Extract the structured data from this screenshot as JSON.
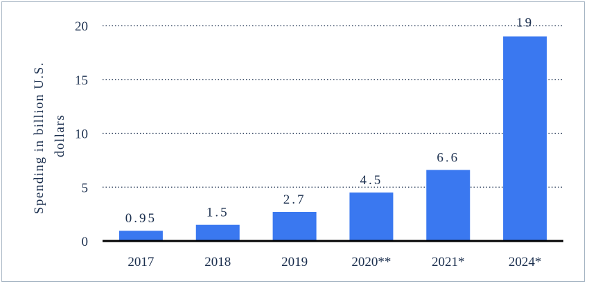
{
  "chart_data": {
    "type": "bar",
    "title": "",
    "xlabel": "",
    "ylabel_lines": [
      "Spending in billion U.S.",
      "dollars"
    ],
    "categories": [
      "2017",
      "2018",
      "2019",
      "2020**",
      "2021*",
      "2024*"
    ],
    "values": [
      0.95,
      1.5,
      2.7,
      4.5,
      6.6,
      19
    ],
    "value_labels": [
      "0.95",
      "1.5",
      "2.7",
      "4.5",
      "6.6",
      "19"
    ],
    "ylim": [
      0,
      20
    ],
    "yticks": [
      0,
      5,
      10,
      15,
      20
    ],
    "grid": "horizontal-dotted",
    "bar_color": "#3a78f0",
    "axis_color": "#000000",
    "text_color": "#1b2f4e"
  }
}
